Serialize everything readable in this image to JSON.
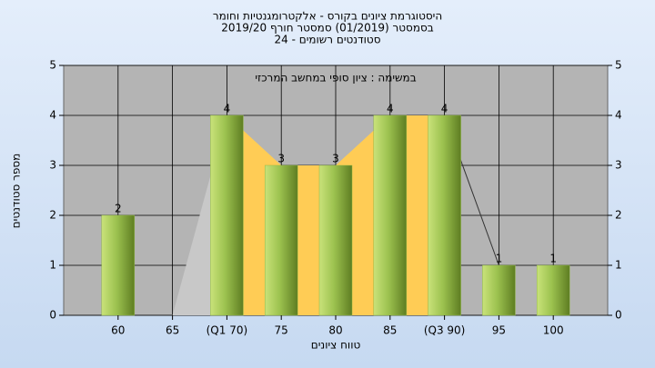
{
  "chart_data": {
    "type": "bar",
    "title_lines": [
      "היסטוגרמת ציונים בקורס - אלקטרומגנטיות וחומר",
      "בסמסטר (01/2019) סמסטר חורף 2019/20",
      "סטודנטים רשומים - 24"
    ],
    "annotation": "במשימה : ציון סופי במחשב המרכזי",
    "x_label": "טווח ציונים",
    "y_label": "מספר סטודנטים",
    "categories": [
      "60",
      "65",
      "(Q1 70)",
      "75",
      "80",
      "85",
      "(Q3 90)",
      "95",
      "100"
    ],
    "values": [
      2,
      0,
      4,
      3,
      3,
      4,
      4,
      1,
      1
    ],
    "color": "#8fb845",
    "area_color": "#ffcc55",
    "ylim": [
      0,
      5
    ],
    "yticks": [
      0,
      1,
      2,
      3,
      4,
      5
    ],
    "y2lim": [
      0,
      5
    ],
    "y2ticks": [
      0,
      1,
      2,
      3,
      4,
      5
    ],
    "grid": true
  }
}
